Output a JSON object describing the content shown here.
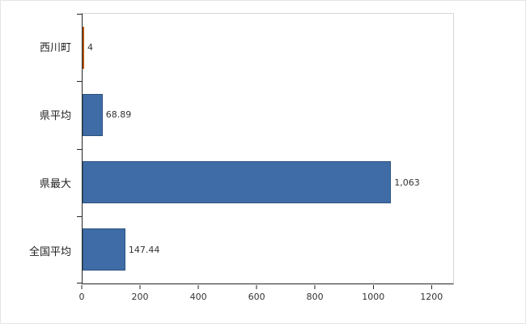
{
  "chart": {
    "background": "#ffffff",
    "plot_border_color": "#d6d6d6",
    "axis_color": "#262626"
  },
  "chart_data": {
    "type": "bar",
    "orientation": "horizontal",
    "title": "",
    "xlabel": "",
    "ylabel": "",
    "categories": [
      "西川町",
      "県平均",
      "県最大",
      "全国平均"
    ],
    "values": [
      4,
      68.89,
      1063,
      147.44
    ],
    "value_labels": [
      "4",
      "68.89",
      "1,063",
      "147.44"
    ],
    "bar_colors": [
      "#e4711e",
      "#3f6ca6",
      "#3f6ca6",
      "#3f6ca6"
    ],
    "bar_border_colors": [
      "#b55411",
      "#2d5481",
      "#2d5481",
      "#2d5481"
    ],
    "x_ticks": [
      0,
      200,
      400,
      600,
      800,
      1000,
      1200
    ],
    "x_tick_labels": [
      "0",
      "200",
      "400",
      "600",
      "800",
      "1000",
      "1200"
    ],
    "xlim": [
      0,
      1277
    ],
    "grid": false,
    "legend_position": "none"
  }
}
